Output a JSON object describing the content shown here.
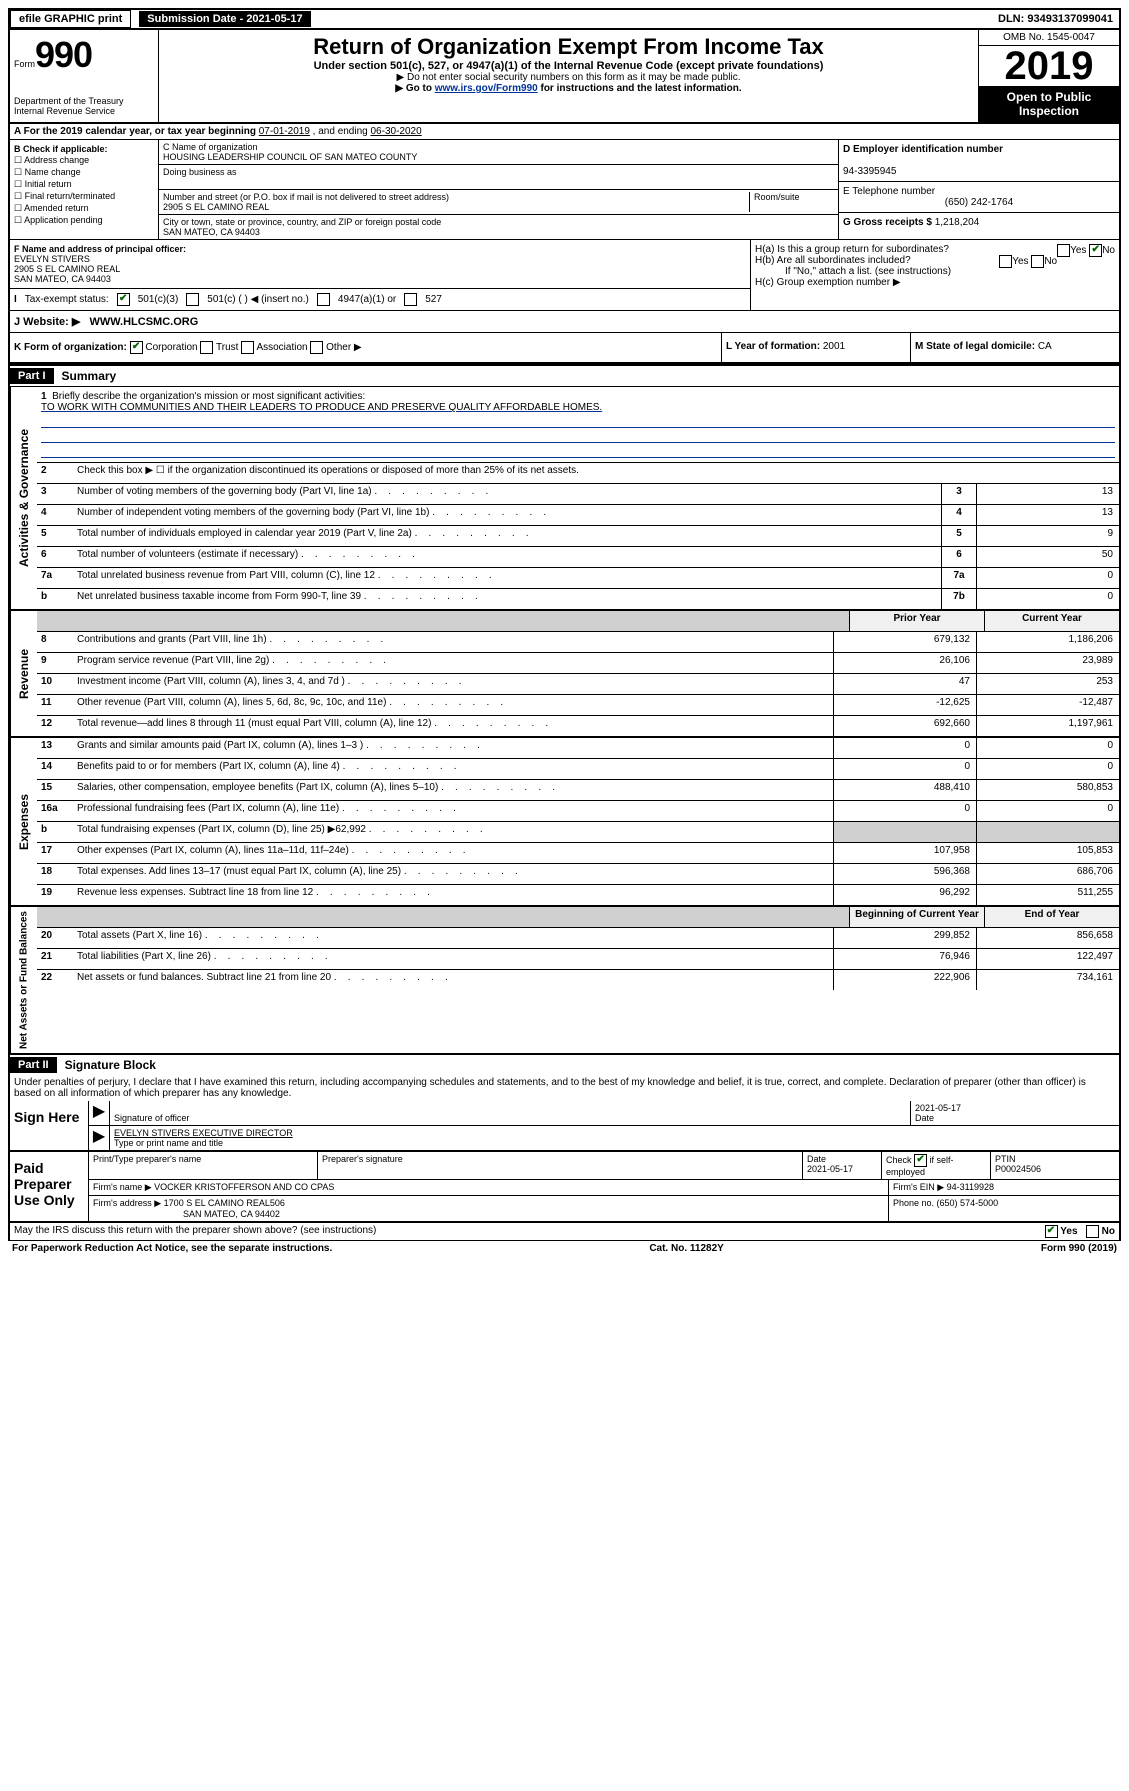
{
  "topbar": {
    "efile": "efile GRAPHIC print",
    "submission_label": "Submission Date - 2021-05-17",
    "dln": "DLN: 93493137099041"
  },
  "header": {
    "form_prefix": "Form",
    "form_num": "990",
    "dept": "Department of the Treasury\nInternal Revenue Service",
    "title": "Return of Organization Exempt From Income Tax",
    "subtitle": "Under section 501(c), 527, or 4947(a)(1) of the Internal Revenue Code (except private foundations)",
    "note1": "▶ Do not enter social security numbers on this form as it may be made public.",
    "note2_pre": "▶ Go to ",
    "note2_link": "www.irs.gov/Form990",
    "note2_post": " for instructions and the latest information.",
    "omb": "OMB No. 1545-0047",
    "year": "2019",
    "open": "Open to Public Inspection"
  },
  "a": {
    "text_pre": "A For the 2019 calendar year, or tax year beginning ",
    "begin": "07-01-2019",
    "mid": " , and ending ",
    "end": "06-30-2020"
  },
  "b": {
    "label": "B Check if applicable:",
    "opts": [
      "Address change",
      "Name change",
      "Initial return",
      "Final return/terminated",
      "Amended return",
      "Application pending"
    ]
  },
  "c": {
    "name_label": "C Name of organization",
    "name": "HOUSING LEADERSHIP COUNCIL OF SAN MATEO COUNTY",
    "dba_label": "Doing business as",
    "addr_label": "Number and street (or P.O. box if mail is not delivered to street address)",
    "room_label": "Room/suite",
    "addr": "2905 S EL CAMINO REAL",
    "city_label": "City or town, state or province, country, and ZIP or foreign postal code",
    "city": "SAN MATEO, CA  94403"
  },
  "d": {
    "label": "D Employer identification number",
    "val": "94-3395945"
  },
  "e": {
    "label": "E Telephone number",
    "val": "(650) 242-1764"
  },
  "g": {
    "label": "G Gross receipts $ ",
    "val": "1,218,204"
  },
  "f": {
    "label": "F Name and address of principal officer:",
    "name": "EVELYN STIVERS",
    "addr1": "2905 S EL CAMINO REAL",
    "addr2": "SAN MATEO, CA  94403"
  },
  "h": {
    "a": "H(a)  Is this a group return for subordinates?",
    "b": "H(b)  Are all subordinates included?",
    "b_note": "If \"No,\" attach a list. (see instructions)",
    "c": "H(c)  Group exemption number ▶"
  },
  "i": {
    "label": "Tax-exempt status:",
    "opt1": "501(c)(3)",
    "opt2": "501(c) (  ) ◀ (insert no.)",
    "opt3": "4947(a)(1) or",
    "opt4": "527"
  },
  "j": {
    "label": "J   Website: ▶",
    "val": "WWW.HLCSMC.ORG"
  },
  "k": {
    "label": "K Form of organization:",
    "corp": "Corporation",
    "trust": "Trust",
    "assoc": "Association",
    "other": "Other ▶"
  },
  "l": {
    "label": "L Year of formation: ",
    "val": "2001"
  },
  "m": {
    "label": "M State of legal domicile: ",
    "val": "CA"
  },
  "part1": {
    "hdr": "Part I",
    "title": "Summary",
    "line1_label": "Briefly describe the organization's mission or most significant activities:",
    "line1_val": "TO WORK WITH COMMUNITIES AND THEIR LEADERS TO PRODUCE AND PRESERVE QUALITY AFFORDABLE HOMES.",
    "line2": "Check this box ▶ ☐  if the organization discontinued its operations or disposed of more than 25% of its net assets.",
    "side_ag": "Activities & Governance",
    "side_rev": "Revenue",
    "side_exp": "Expenses",
    "side_na": "Net Assets or Fund Balances",
    "hdr_prior": "Prior Year",
    "hdr_curr": "Current Year",
    "hdr_boy": "Beginning of Current Year",
    "hdr_eoy": "End of Year",
    "rows_ag": [
      {
        "n": "3",
        "d": "Number of voting members of the governing body (Part VI, line 1a)",
        "box": "3",
        "v": "13"
      },
      {
        "n": "4",
        "d": "Number of independent voting members of the governing body (Part VI, line 1b)",
        "box": "4",
        "v": "13"
      },
      {
        "n": "5",
        "d": "Total number of individuals employed in calendar year 2019 (Part V, line 2a)",
        "box": "5",
        "v": "9"
      },
      {
        "n": "6",
        "d": "Total number of volunteers (estimate if necessary)",
        "box": "6",
        "v": "50"
      },
      {
        "n": "7a",
        "d": "Total unrelated business revenue from Part VIII, column (C), line 12",
        "box": "7a",
        "v": "0"
      },
      {
        "n": "b",
        "d": "Net unrelated business taxable income from Form 990-T, line 39",
        "box": "7b",
        "v": "0"
      }
    ],
    "rows_rev": [
      {
        "n": "8",
        "d": "Contributions and grants (Part VIII, line 1h)",
        "p": "679,132",
        "c": "1,186,206"
      },
      {
        "n": "9",
        "d": "Program service revenue (Part VIII, line 2g)",
        "p": "26,106",
        "c": "23,989"
      },
      {
        "n": "10",
        "d": "Investment income (Part VIII, column (A), lines 3, 4, and 7d )",
        "p": "47",
        "c": "253"
      },
      {
        "n": "11",
        "d": "Other revenue (Part VIII, column (A), lines 5, 6d, 8c, 9c, 10c, and 11e)",
        "p": "-12,625",
        "c": "-12,487"
      },
      {
        "n": "12",
        "d": "Total revenue—add lines 8 through 11 (must equal Part VIII, column (A), line 12)",
        "p": "692,660",
        "c": "1,197,961"
      }
    ],
    "rows_exp": [
      {
        "n": "13",
        "d": "Grants and similar amounts paid (Part IX, column (A), lines 1–3 )",
        "p": "0",
        "c": "0"
      },
      {
        "n": "14",
        "d": "Benefits paid to or for members (Part IX, column (A), line 4)",
        "p": "0",
        "c": "0"
      },
      {
        "n": "15",
        "d": "Salaries, other compensation, employee benefits (Part IX, column (A), lines 5–10)",
        "p": "488,410",
        "c": "580,853"
      },
      {
        "n": "16a",
        "d": "Professional fundraising fees (Part IX, column (A), line 11e)",
        "p": "0",
        "c": "0"
      },
      {
        "n": "b",
        "d": "Total fundraising expenses (Part IX, column (D), line 25) ▶62,992",
        "p": "",
        "c": "",
        "grey": true
      },
      {
        "n": "17",
        "d": "Other expenses (Part IX, column (A), lines 11a–11d, 11f–24e)",
        "p": "107,958",
        "c": "105,853"
      },
      {
        "n": "18",
        "d": "Total expenses. Add lines 13–17 (must equal Part IX, column (A), line 25)",
        "p": "596,368",
        "c": "686,706"
      },
      {
        "n": "19",
        "d": "Revenue less expenses. Subtract line 18 from line 12",
        "p": "96,292",
        "c": "511,255"
      }
    ],
    "rows_na": [
      {
        "n": "20",
        "d": "Total assets (Part X, line 16)",
        "p": "299,852",
        "c": "856,658"
      },
      {
        "n": "21",
        "d": "Total liabilities (Part X, line 26)",
        "p": "76,946",
        "c": "122,497"
      },
      {
        "n": "22",
        "d": "Net assets or fund balances. Subtract line 21 from line 20",
        "p": "222,906",
        "c": "734,161"
      }
    ]
  },
  "part2": {
    "hdr": "Part II",
    "title": "Signature Block",
    "perjury": "Under penalties of perjury, I declare that I have examined this return, including accompanying schedules and statements, and to the best of my knowledge and belief, it is true, correct, and complete. Declaration of preparer (other than officer) is based on all information of which preparer has any knowledge."
  },
  "sign": {
    "label": "Sign Here",
    "sig_officer": "Signature of officer",
    "date_val": "2021-05-17",
    "date_label": "Date",
    "name_val": "EVELYN STIVERS  EXECUTIVE DIRECTOR",
    "name_label": "Type or print name and title"
  },
  "paid": {
    "label": "Paid Preparer Use Only",
    "col1": "Print/Type preparer's name",
    "col2": "Preparer's signature",
    "col3_label": "Date",
    "col3_val": "2021-05-17",
    "col4_label": "Check ☑ if self-employed",
    "col5_label": "PTIN",
    "col5_val": "P00024506",
    "firm_name_label": "Firm's name      ▶",
    "firm_name": "VOCKER KRISTOFFERSON AND CO CPAS",
    "firm_ein_label": "Firm's EIN ▶ ",
    "firm_ein": "94-3119928",
    "firm_addr_label": "Firm's address ▶",
    "firm_addr": "1700 S EL CAMINO REAL506",
    "firm_city": "SAN MATEO, CA  94402",
    "phone_label": "Phone no. ",
    "phone": "(650) 574-5000"
  },
  "discuss": "May the IRS discuss this return with the preparer shown above? (see instructions)",
  "footer": {
    "left": "For Paperwork Reduction Act Notice, see the separate instructions.",
    "mid": "Cat. No. 11282Y",
    "right": "Form 990 (2019)"
  }
}
